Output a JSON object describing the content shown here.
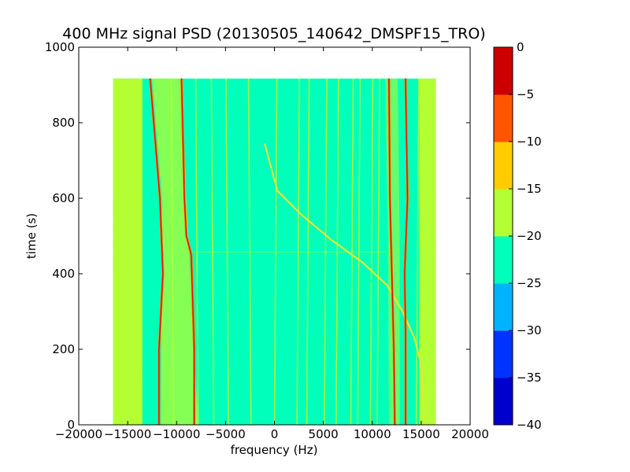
{
  "chart_data": {
    "type": "heatmap",
    "title": "400 MHz signal PSD (20130505_140642_DMSPF15_TRO)",
    "xlabel": "frequency (Hz)",
    "ylabel": "time (s)",
    "xlim": [
      -20000,
      20000
    ],
    "ylim": [
      0,
      1000
    ],
    "x_ticks": [
      -20000,
      -15000,
      -10000,
      -5000,
      0,
      5000,
      10000,
      15000,
      20000
    ],
    "x_tick_labels": [
      "−20000",
      "−15000",
      "−10000",
      "−5000",
      "0",
      "5000",
      "10000",
      "15000",
      "20000"
    ],
    "y_ticks": [
      0,
      200,
      400,
      600,
      800,
      1000
    ],
    "y_tick_labels": [
      "0",
      "200",
      "400",
      "600",
      "800",
      "1000"
    ],
    "data_extent": {
      "x": [
        -16500,
        16500
      ],
      "y": [
        0,
        917
      ]
    },
    "background_level_db": -22.5,
    "edge_level_db": -17.5,
    "colorbar": {
      "levels": [
        -40,
        -35,
        -30,
        -25,
        -20,
        -15,
        -10,
        -5,
        0
      ],
      "tick_labels": [
        "−40",
        "−35",
        "−30",
        "−25",
        "−20",
        "−15",
        "−10",
        "−5",
        "0"
      ],
      "colors": [
        "#0000cc",
        "#0033ff",
        "#00b3ff",
        "#00ffbb",
        "#b3ff33",
        "#ffcc00",
        "#ff5500",
        "#cc0000"
      ]
    },
    "strong_lines": [
      {
        "name": "",
        "points": [
          [
            -12700,
            917
          ],
          [
            -11700,
            600
          ],
          [
            -11400,
            400
          ],
          [
            -11800,
            200
          ],
          [
            -11800,
            0
          ]
        ]
      },
      {
        "name": "",
        "points": [
          [
            -9500,
            917
          ],
          [
            -9200,
            600
          ],
          [
            -9000,
            500
          ],
          [
            -8500,
            450
          ],
          [
            -8200,
            200
          ],
          [
            -8200,
            0
          ]
        ]
      },
      {
        "name": "",
        "points": [
          [
            11700,
            917
          ],
          [
            11800,
            600
          ],
          [
            12000,
            400
          ],
          [
            12200,
            200
          ],
          [
            12300,
            0
          ]
        ]
      },
      {
        "name": "",
        "points": [
          [
            13400,
            917
          ],
          [
            13600,
            600
          ],
          [
            13300,
            400
          ],
          [
            13400,
            250
          ],
          [
            13400,
            0
          ]
        ]
      }
    ],
    "doppler_trace": [
      [
        -1000,
        745
      ],
      [
        300,
        620
      ],
      [
        2600,
        560
      ],
      [
        5800,
        490
      ],
      [
        9000,
        430
      ],
      [
        11500,
        370
      ],
      [
        13100,
        300
      ],
      [
        14300,
        230
      ],
      [
        14900,
        170
      ],
      [
        15200,
        100
      ],
      [
        15300,
        0
      ]
    ],
    "faint_lines_x": [
      -15800,
      -14500,
      -13800,
      -10300,
      -7800,
      -6200,
      -4700,
      -2400,
      0,
      2300,
      3300,
      5100,
      6300,
      7800,
      8500,
      9800,
      10500,
      14500,
      15700
    ],
    "faint_band_y": 458
  }
}
